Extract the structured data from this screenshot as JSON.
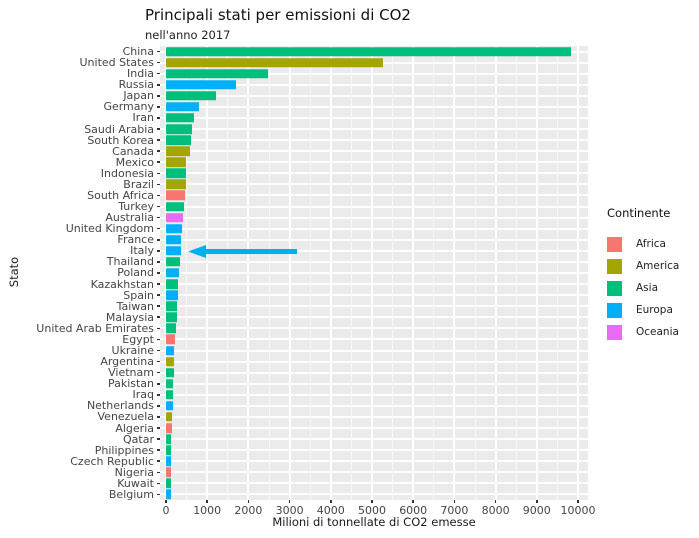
{
  "chart_data": {
    "type": "bar",
    "orientation": "horizontal",
    "title": "Principali stati per emissioni di CO2",
    "subtitle": "nell'anno 2017",
    "xlabel": "Milioni di tonnellate di CO2 emesse",
    "ylabel": "Stato",
    "xlim": [
      0,
      10400
    ],
    "x_ticks": [
      0,
      1000,
      2000,
      3000,
      4000,
      5000,
      6000,
      7000,
      8000,
      9000,
      10000
    ],
    "grid": true,
    "panel_background": "#EBEBEB",
    "gridline_color": "#FFFFFF",
    "legend_position": "right",
    "legend_title": "Continente",
    "continent_colors": {
      "Africa": "#F8766D",
      "America": "#A3A500",
      "Asia": "#00BF7D",
      "Europa": "#00B0F6",
      "Oceania": "#E76BF3"
    },
    "bars": [
      {
        "country": "China",
        "continent": "Asia",
        "value": 9839
      },
      {
        "country": "United States",
        "continent": "America",
        "value": 5270
      },
      {
        "country": "India",
        "continent": "Asia",
        "value": 2467
      },
      {
        "country": "Russia",
        "continent": "Europa",
        "value": 1693
      },
      {
        "country": "Japan",
        "continent": "Asia",
        "value": 1205
      },
      {
        "country": "Germany",
        "continent": "Europa",
        "value": 799
      },
      {
        "country": "Iran",
        "continent": "Asia",
        "value": 672
      },
      {
        "country": "Saudi Arabia",
        "continent": "Asia",
        "value": 635
      },
      {
        "country": "South Korea",
        "continent": "Asia",
        "value": 616
      },
      {
        "country": "Canada",
        "continent": "America",
        "value": 573
      },
      {
        "country": "Mexico",
        "continent": "America",
        "value": 490
      },
      {
        "country": "Indonesia",
        "continent": "Asia",
        "value": 487
      },
      {
        "country": "Brazil",
        "continent": "America",
        "value": 476
      },
      {
        "country": "South Africa",
        "continent": "Africa",
        "value": 456
      },
      {
        "country": "Turkey",
        "continent": "Asia",
        "value": 448
      },
      {
        "country": "Australia",
        "continent": "Oceania",
        "value": 414
      },
      {
        "country": "United Kingdom",
        "continent": "Europa",
        "value": 379
      },
      {
        "country": "France",
        "continent": "Europa",
        "value": 356
      },
      {
        "country": "Italy",
        "continent": "Europa",
        "value": 355
      },
      {
        "country": "Thailand",
        "continent": "Asia",
        "value": 331
      },
      {
        "country": "Poland",
        "continent": "Europa",
        "value": 327
      },
      {
        "country": "Kazakhstan",
        "continent": "Asia",
        "value": 293
      },
      {
        "country": "Spain",
        "continent": "Europa",
        "value": 282
      },
      {
        "country": "Taiwan",
        "continent": "Asia",
        "value": 277
      },
      {
        "country": "Malaysia",
        "continent": "Asia",
        "value": 255
      },
      {
        "country": "United Arab Emirates",
        "continent": "Asia",
        "value": 233
      },
      {
        "country": "Egypt",
        "continent": "Africa",
        "value": 220
      },
      {
        "country": "Ukraine",
        "continent": "Europa",
        "value": 205
      },
      {
        "country": "Argentina",
        "continent": "America",
        "value": 201
      },
      {
        "country": "Vietnam",
        "continent": "Asia",
        "value": 191
      },
      {
        "country": "Pakistan",
        "continent": "Asia",
        "value": 178
      },
      {
        "country": "Iraq",
        "continent": "Asia",
        "value": 171
      },
      {
        "country": "Netherlands",
        "continent": "Europa",
        "value": 163
      },
      {
        "country": "Venezuela",
        "continent": "America",
        "value": 152
      },
      {
        "country": "Algeria",
        "continent": "Africa",
        "value": 150
      },
      {
        "country": "Qatar",
        "continent": "Asia",
        "value": 128
      },
      {
        "country": "Philippines",
        "continent": "Asia",
        "value": 127
      },
      {
        "country": "Czech Republic",
        "continent": "Europa",
        "value": 121
      },
      {
        "country": "Nigeria",
        "continent": "Africa",
        "value": 120
      },
      {
        "country": "Kuwait",
        "continent": "Asia",
        "value": 119
      },
      {
        "country": "Belgium",
        "continent": "Europa",
        "value": 115
      }
    ]
  },
  "annotation": {
    "shape": "arrow",
    "direction": "left",
    "points_at": "Italy",
    "color": "#00AEEF"
  }
}
